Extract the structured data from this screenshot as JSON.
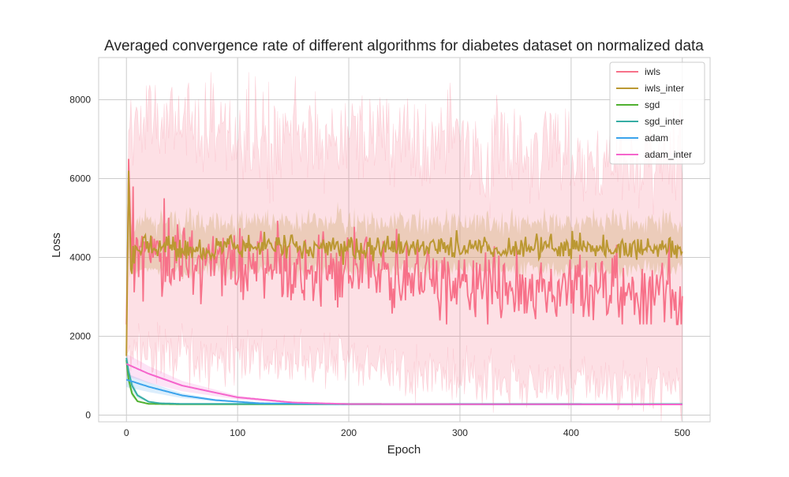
{
  "chart_data": {
    "type": "line",
    "title": "Averaged convergence rate of different algorithms for diabetes dataset on normalized data",
    "xlabel": "Epoch",
    "ylabel": "Loss",
    "xlim": [
      -25,
      525
    ],
    "ylim": [
      -170,
      9070
    ],
    "x_ticks": [
      0,
      100,
      200,
      300,
      400,
      500
    ],
    "y_ticks": [
      0,
      2000,
      4000,
      6000,
      8000
    ],
    "grid": true,
    "legend_position": "top-right",
    "epochs": 500,
    "series": [
      {
        "name": "iwls",
        "color": "#f77189",
        "description": "noisy; spike to ~6500 at epoch 2, mean ~4000 falling to ~3000 by epoch 500; band ~1500-8000 early, ~800-6500 late",
        "keypoints": {
          "x": [
            0,
            2,
            5,
            10,
            30,
            50,
            100,
            150,
            200,
            250,
            300,
            350,
            400,
            450,
            500
          ],
          "y": [
            1400,
            6500,
            3500,
            4200,
            4000,
            3900,
            3800,
            3650,
            3600,
            3500,
            3350,
            3200,
            3150,
            3050,
            2950
          ]
        },
        "band_lower": [
          1500,
          1600,
          1500,
          1400,
          1300,
          1150,
          1000,
          900,
          850,
          800,
          750
        ],
        "band_upper": [
          7500,
          7300,
          7200,
          7100,
          7000,
          6900,
          6800,
          6700,
          6600,
          6500,
          6400
        ]
      },
      {
        "name": "iwls_inter",
        "color": "#bb9832",
        "description": "spike to ~6200 at epoch 2, then stable ~4250 with small noise; band ~3700-4900",
        "keypoints": {
          "x": [
            0,
            2,
            4,
            10,
            50,
            100,
            200,
            300,
            400,
            500
          ],
          "y": [
            1500,
            6200,
            3700,
            4300,
            4250,
            4250,
            4250,
            4250,
            4250,
            4250
          ]
        },
        "band_lower": 3700,
        "band_upper": 4900
      },
      {
        "name": "sgd",
        "color": "#50b131",
        "description": "fast decay from ~1400 to ~270 within ~20 epochs",
        "keypoints": {
          "x": [
            0,
            2,
            5,
            10,
            20,
            50,
            500
          ],
          "y": [
            1400,
            900,
            550,
            350,
            285,
            275,
            275
          ]
        }
      },
      {
        "name": "sgd_inter",
        "color": "#36ada4",
        "description": "decay from ~1450 to ~270 within ~30 epochs",
        "keypoints": {
          "x": [
            0,
            2,
            5,
            10,
            20,
            30,
            50,
            500
          ],
          "y": [
            1450,
            1100,
            750,
            500,
            340,
            300,
            285,
            280
          ]
        }
      },
      {
        "name": "adam",
        "color": "#3ba3ec",
        "description": "gradual decay from ~900 to ~270 by epoch ~120",
        "keypoints": {
          "x": [
            0,
            20,
            50,
            80,
            120,
            200,
            500
          ],
          "y": [
            900,
            720,
            500,
            380,
            300,
            275,
            270
          ]
        }
      },
      {
        "name": "adam_inter",
        "color": "#f565cc",
        "description": "gradual decay from ~1300 to ~270 by epoch ~200; band ~+-300 early",
        "keypoints": {
          "x": [
            0,
            20,
            50,
            100,
            150,
            200,
            500
          ],
          "y": [
            1300,
            1050,
            750,
            450,
            320,
            280,
            270
          ]
        }
      }
    ]
  }
}
